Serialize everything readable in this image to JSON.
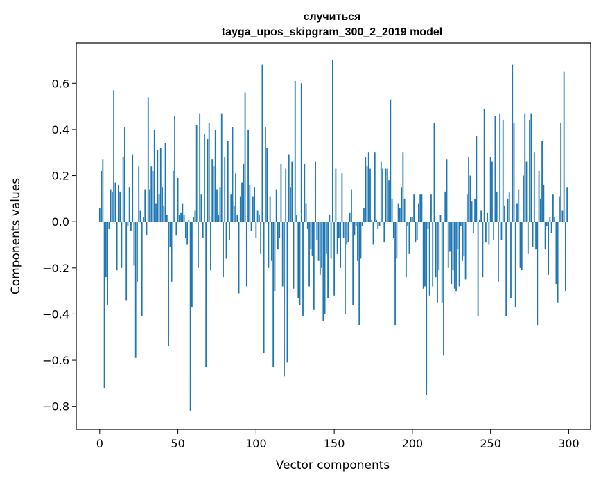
{
  "chart_data": {
    "type": "bar",
    "title_line1": "случиться",
    "title_line2": "tayga_upos_skipgram_300_2_2019 model",
    "xlabel": "Vector components",
    "ylabel": "Components values",
    "xlim": [
      -15,
      314
    ],
    "ylim": [
      -0.9,
      0.775
    ],
    "xticks": [
      0,
      50,
      100,
      150,
      200,
      250,
      300
    ],
    "xtick_labels": [
      "0",
      "50",
      "100",
      "150",
      "200",
      "250",
      "300"
    ],
    "yticks": [
      -0.8,
      -0.6,
      -0.4,
      -0.2,
      0.0,
      0.2,
      0.4,
      0.6
    ],
    "ytick_labels": [
      "−0.8",
      "−0.6",
      "−0.4",
      "−0.2",
      "0.0",
      "0.2",
      "0.4",
      "0.6"
    ],
    "bar_color": "#1f77b4",
    "grid": false,
    "values": [
      0.06,
      0.22,
      0.27,
      -0.72,
      -0.24,
      -0.36,
      -0.03,
      0.14,
      0.13,
      0.57,
      0.17,
      -0.21,
      0.16,
      0.13,
      -0.2,
      0.28,
      0.41,
      -0.34,
      -0.02,
      0.15,
      -0.04,
      0.29,
      -0.19,
      -0.59,
      -0.26,
      0.24,
      0.05,
      -0.41,
      0.02,
      0.14,
      -0.06,
      0.54,
      0.14,
      0.24,
      0.22,
      0.4,
      0.08,
      0.31,
      0.12,
      0.32,
      0.15,
      0.07,
      0.34,
      0.03,
      -0.54,
      -0.11,
      -0.26,
      0.22,
      0.46,
      -0.06,
      0.19,
      0.03,
      0.04,
      0.08,
      0.03,
      -0.07,
      -0.1,
      0.01,
      -0.82,
      -0.37,
      0.02,
      0.05,
      0.42,
      -0.2,
      0.47,
      0.12,
      -0.07,
      0.38,
      -0.63,
      0.36,
      0.43,
      -0.21,
      0.27,
      0.24,
      0.4,
      0.14,
      0.03,
      0.15,
      0.47,
      -0.24,
      0.28,
      -0.16,
      0.35,
      -0.08,
      0.12,
      0.41,
      0.07,
      0.21,
      0.03,
      -0.31,
      0.11,
      0.17,
      0.25,
      0.56,
      -0.28,
      0.4,
      0.16,
      -0.04,
      0.11,
      0.15,
      -0.07,
      0.05,
      0.03,
      -0.14,
      0.68,
      -0.57,
      0.41,
      0.32,
      -0.2,
      0.11,
      -0.17,
      -0.63,
      -0.3,
      0.14,
      -0.12,
      -0.07,
      0.25,
      -0.28,
      -0.67,
      0.23,
      -0.61,
      0.29,
      0.15,
      0.26,
      -0.29,
      0.61,
      0.03,
      -0.33,
      -0.36,
      0.6,
      -0.41,
      0.25,
      0.08,
      -0.03,
      -0.28,
      -0.12,
      -0.15,
      -0.38,
      0.26,
      -0.08,
      -0.17,
      -0.23,
      -0.2,
      -0.43,
      -0.4,
      -0.14,
      -0.33,
      0.03,
      -0.16,
      0.7,
      -0.32,
      0.23,
      -0.14,
      -0.07,
      -0.2,
      0.21,
      -0.07,
      -0.4,
      -0.1,
      -0.09,
      0.04,
      0.14,
      -0.36,
      -0.06,
      -0.02,
      -0.17,
      -0.45,
      -0.16,
      -0.02,
      0.06,
      0.28,
      0.24,
      0.3,
      0.23,
      0.01,
      -0.1,
      0.3,
      0.01,
      -0.03,
      -0.02,
      0.26,
      0.23,
      -0.09,
      0.23,
      0.23,
      0.18,
      0.53,
      0.1,
      -0.07,
      -0.45,
      -0.16,
      0.08,
      0.06,
      0.15,
      0.3,
      0.1,
      -0.24,
      -0.02,
      -0.14,
      0.02,
      0.02,
      0.12,
      -0.09,
      -0.08,
      0.08,
      0.12,
      0.12,
      -0.29,
      -0.28,
      -0.75,
      -0.03,
      -0.32,
      0.12,
      -0.28,
      0.43,
      -0.24,
      -0.35,
      -0.21,
      0.03,
      -0.35,
      -0.58,
      0.13,
      0.27,
      -0.2,
      -0.13,
      -0.27,
      -0.21,
      -0.29,
      -0.3,
      -0.12,
      -0.28,
      -0.02,
      -0.17,
      -0.15,
      -0.25,
      0.12,
      0.28,
      0.2,
      0.09,
      -0.05,
      0.1,
      0.37,
      -0.41,
      0.01,
      0.05,
      -0.24,
      0.49,
      -0.09,
      0.04,
      -0.1,
      0.28,
      0.26,
      -0.08,
      0.46,
      0.13,
      -0.26,
      0.47,
      -0.08,
      0.44,
      0.07,
      -0.41,
      0.1,
      0.13,
      -0.33,
      0.68,
      0.43,
      -0.37,
      0.08,
      0.14,
      -0.2,
      -0.21,
      0.2,
      0.47,
      0.26,
      -0.14,
      0.44,
      0.47,
      -0.11,
      0.3,
      -0.12,
      -0.45,
      0.22,
      0.1,
      0.35,
      0.16,
      -0.12,
      -0.02,
      -0.23,
      0.02,
      -0.05,
      0.12,
      0.02,
      -0.27,
      -0.35,
      0.11,
      0.43,
      0.05,
      0.65,
      -0.3,
      0.15
    ]
  }
}
